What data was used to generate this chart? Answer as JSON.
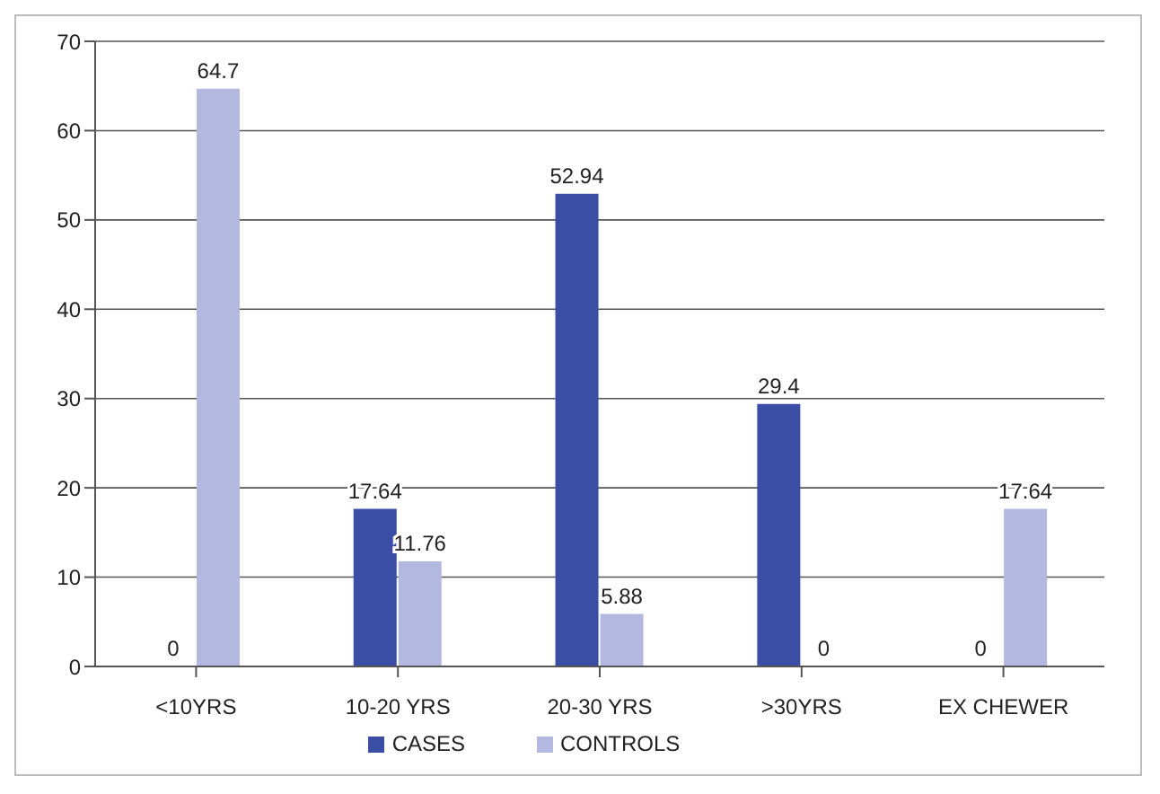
{
  "chart_data": {
    "type": "bar",
    "categories": [
      "<10YRS",
      "10-20 YRS",
      "20-30 YRS",
      ">30YRS",
      "EX CHEWER"
    ],
    "series": [
      {
        "name": "CASES",
        "color": "#3b4ea6",
        "values": [
          0,
          17.64,
          52.94,
          29.4,
          0
        ]
      },
      {
        "name": "CONTROLS",
        "color": "#b3b8e0",
        "values": [
          64.7,
          11.76,
          5.88,
          0,
          17.64
        ]
      }
    ],
    "ylim": [
      0,
      70
    ],
    "yticks": [
      0,
      10,
      20,
      30,
      40,
      50,
      60,
      70
    ],
    "grid": "y",
    "legend": "bottom",
    "data_labels": true
  }
}
